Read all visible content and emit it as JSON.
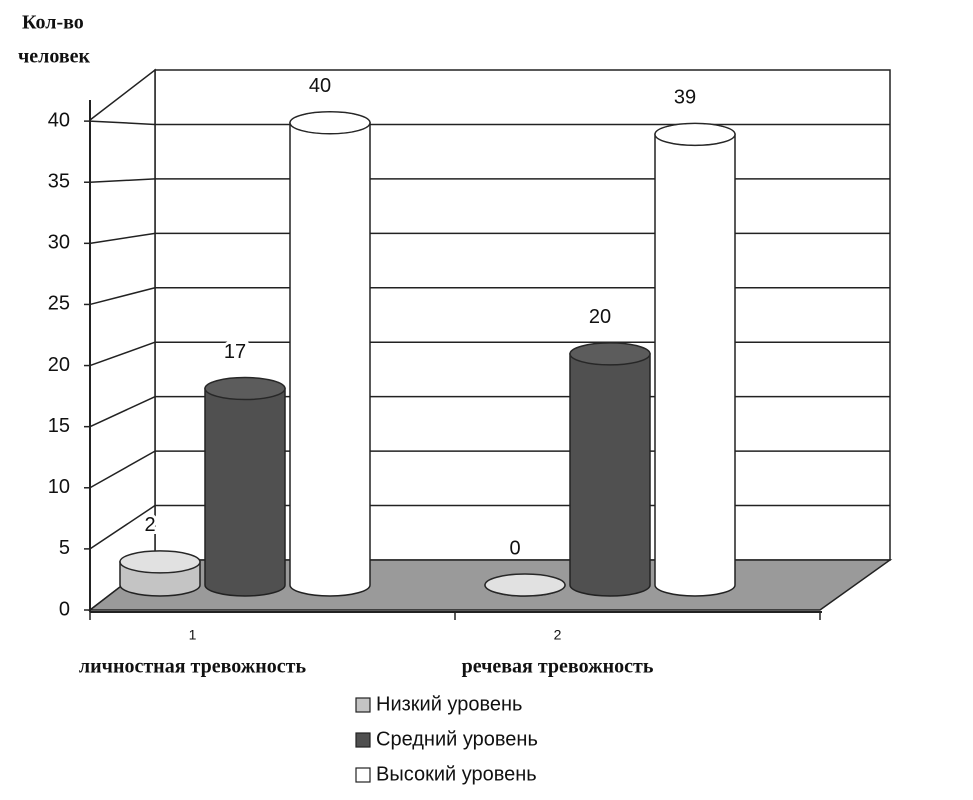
{
  "chart_data": {
    "type": "bar3d",
    "y_label": [
      "Кол-во",
      "человек"
    ],
    "categories": [
      "1",
      "2"
    ],
    "category_labels": [
      "личностная тревожность",
      "речевая тревожность"
    ],
    "series": [
      {
        "name": "Низкий уровень",
        "color": "#c4c4c4",
        "values": [
          2,
          0
        ]
      },
      {
        "name": "Средний уровень",
        "color": "#505050",
        "values": [
          17,
          20
        ]
      },
      {
        "name": "Высокий уровень",
        "color": "#ffffff",
        "values": [
          40,
          39
        ]
      }
    ],
    "ylim": [
      0,
      45
    ],
    "yticks": [
      0,
      5,
      10,
      15,
      20,
      25,
      30,
      35,
      40
    ],
    "grid": true
  }
}
